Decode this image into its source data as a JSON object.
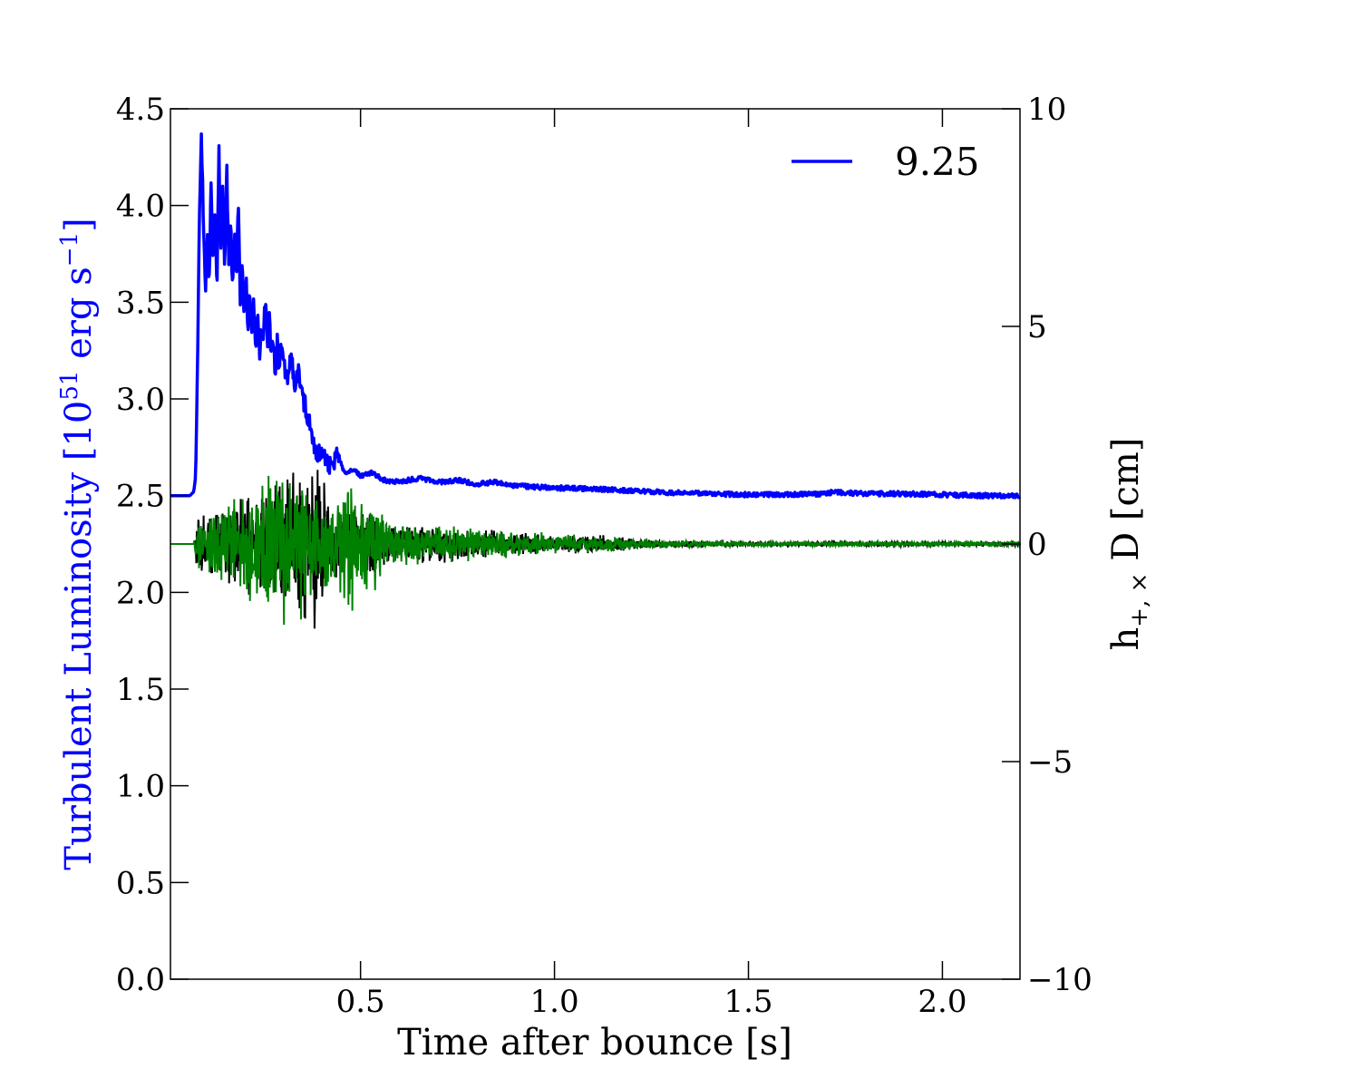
{
  "chart_data": {
    "type": "line",
    "title": "",
    "xlabel": "Time after bounce [s]",
    "ylabel_left": "Turbulent Luminosity [10^51 erg s^-1]",
    "ylabel_left_parts": {
      "main": "Turbulent Luminosity [10",
      "exp": "51",
      "mid": " erg s",
      "exp2": "−1",
      "tail": "]"
    },
    "ylabel_right": "h+,× D [cm]",
    "ylabel_right_parts": {
      "main": "h",
      "sub": "+, ×",
      "tail": " D [cm]"
    },
    "xlim": [
      0.01,
      2.2
    ],
    "ylim_left": [
      0.0,
      4.5
    ],
    "ylim_right": [
      -10,
      10
    ],
    "x_ticks": [
      0.5,
      1.0,
      1.5,
      2.0
    ],
    "x_tick_labels": [
      "0.5",
      "1.0",
      "1.5",
      "2.0"
    ],
    "y_left_ticks": [
      0.0,
      0.5,
      1.0,
      1.5,
      2.0,
      2.5,
      3.0,
      3.5,
      4.0,
      4.5
    ],
    "y_left_tick_labels": [
      "0.0",
      "0.5",
      "1.0",
      "1.5",
      "2.0",
      "2.5",
      "3.0",
      "3.5",
      "4.0",
      "4.5"
    ],
    "y_right_ticks": [
      -10,
      -5,
      0,
      5,
      10
    ],
    "y_right_tick_labels": [
      "−10",
      "−5",
      "0",
      "5",
      "10"
    ],
    "grid": false,
    "legend": {
      "position": "top-right",
      "entries": [
        {
          "label": "9.25",
          "color": "#0000ff"
        }
      ]
    },
    "series": [
      {
        "name": "9.25",
        "axis": "left",
        "color": "#0000ff",
        "kind": "luminosity",
        "x": [
          0.01,
          0.06,
          0.07,
          0.075,
          0.08,
          0.085,
          0.09,
          0.095,
          0.1,
          0.105,
          0.11,
          0.115,
          0.12,
          0.125,
          0.13,
          0.135,
          0.14,
          0.145,
          0.15,
          0.155,
          0.16,
          0.165,
          0.17,
          0.175,
          0.18,
          0.185,
          0.19,
          0.195,
          0.2,
          0.205,
          0.21,
          0.215,
          0.22,
          0.225,
          0.23,
          0.235,
          0.24,
          0.245,
          0.25,
          0.255,
          0.26,
          0.265,
          0.27,
          0.275,
          0.28,
          0.285,
          0.29,
          0.295,
          0.3,
          0.31,
          0.32,
          0.33,
          0.34,
          0.35,
          0.36,
          0.37,
          0.38,
          0.39,
          0.4,
          0.42,
          0.44,
          0.46,
          0.48,
          0.5,
          0.53,
          0.56,
          0.6,
          0.65,
          0.7,
          0.75,
          0.8,
          0.85,
          0.9,
          1.0,
          1.1,
          1.2,
          1.3,
          1.4,
          1.5,
          1.6,
          1.7,
          1.72,
          1.75,
          1.8,
          1.9,
          2.0,
          2.1,
          2.2
        ],
        "values": [
          2.5,
          2.5,
          2.52,
          2.6,
          3.2,
          4.0,
          4.38,
          3.9,
          3.55,
          3.85,
          3.6,
          4.15,
          3.7,
          3.95,
          3.6,
          4.3,
          3.75,
          4.1,
          3.65,
          4.25,
          3.7,
          3.95,
          3.55,
          3.85,
          3.6,
          4.05,
          3.5,
          3.7,
          3.45,
          3.62,
          3.35,
          3.55,
          3.3,
          3.5,
          3.25,
          3.45,
          3.2,
          3.4,
          3.35,
          3.55,
          3.3,
          3.45,
          3.2,
          3.35,
          3.1,
          3.3,
          3.15,
          3.3,
          3.2,
          3.1,
          3.25,
          3.05,
          3.15,
          3.0,
          2.95,
          2.85,
          2.75,
          2.7,
          2.75,
          2.65,
          2.7,
          2.62,
          2.64,
          2.6,
          2.62,
          2.58,
          2.57,
          2.59,
          2.57,
          2.58,
          2.56,
          2.57,
          2.55,
          2.54,
          2.535,
          2.525,
          2.515,
          2.51,
          2.505,
          2.505,
          2.51,
          2.52,
          2.515,
          2.51,
          2.51,
          2.505,
          2.5,
          2.5
        ]
      },
      {
        "name": "h_plus",
        "axis": "right",
        "color": "#000000",
        "kind": "strain",
        "envelope_x": [
          0.01,
          0.07,
          0.08,
          0.1,
          0.15,
          0.2,
          0.25,
          0.3,
          0.35,
          0.38,
          0.42,
          0.46,
          0.5,
          0.55,
          0.6,
          0.7,
          0.8,
          0.9,
          1.0,
          1.1,
          1.2,
          1.3,
          1.5,
          1.8,
          2.2
        ],
        "envelope_amp": [
          0.0,
          0.0,
          0.8,
          0.7,
          0.9,
          1.2,
          1.5,
          1.8,
          2.0,
          2.6,
          1.2,
          0.8,
          1.0,
          0.7,
          0.5,
          0.5,
          0.4,
          0.3,
          0.2,
          0.25,
          0.15,
          0.08,
          0.05,
          0.05,
          0.05
        ]
      },
      {
        "name": "h_cross",
        "axis": "right",
        "color": "#008000",
        "kind": "strain",
        "envelope_x": [
          0.01,
          0.07,
          0.08,
          0.1,
          0.15,
          0.2,
          0.25,
          0.3,
          0.35,
          0.38,
          0.42,
          0.46,
          0.5,
          0.55,
          0.6,
          0.7,
          0.8,
          0.9,
          1.0,
          1.1,
          1.2,
          1.3,
          1.5,
          1.8,
          2.2
        ],
        "envelope_amp": [
          0.0,
          0.0,
          0.8,
          0.6,
          1.0,
          1.3,
          1.8,
          2.0,
          1.9,
          1.6,
          1.4,
          1.6,
          1.8,
          0.9,
          0.6,
          0.5,
          0.45,
          0.35,
          0.25,
          0.2,
          0.15,
          0.1,
          0.06,
          0.05,
          0.05
        ]
      }
    ]
  }
}
